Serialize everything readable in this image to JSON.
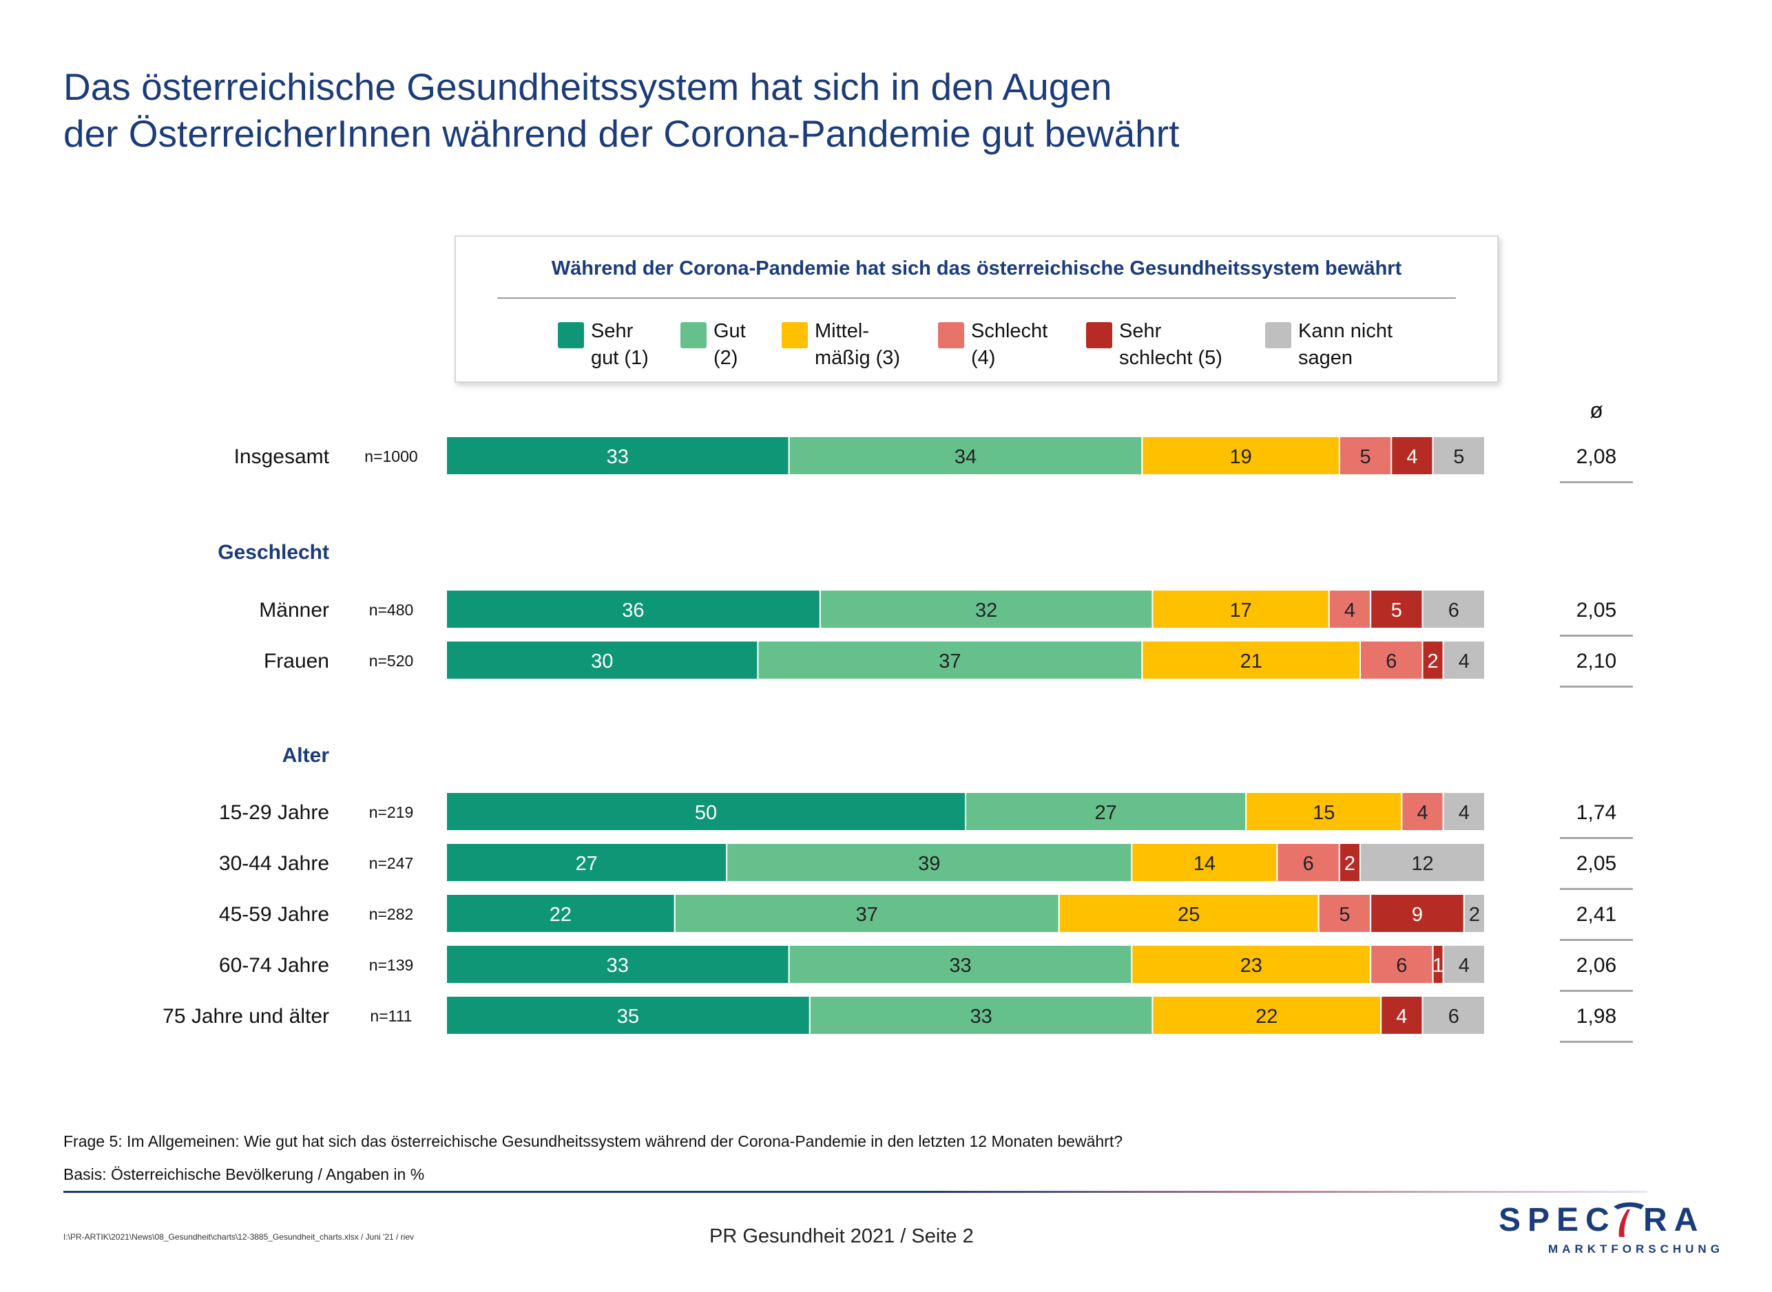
{
  "title_line1": "Das österreichische Gesundheitssystem hat sich in den Augen",
  "title_line2": "der ÖsterreicherInnen während der Corona-Pandemie gut bewährt",
  "chart_data": {
    "type": "bar",
    "orientation": "horizontal-stacked-100",
    "title": "Während der Corona-Pandemie hat sich das österreichische Gesundheitssystem bewährt",
    "unit": "%",
    "legend_placement": "top",
    "series": [
      {
        "name": "Sehr\ngut (1)",
        "color": "#0e9677"
      },
      {
        "name": "Gut\n(2)",
        "color": "#66c08c"
      },
      {
        "name": "Mittel-\nmäßig (3)",
        "color": "#ffc000"
      },
      {
        "name": "Schlecht\n(4)",
        "color": "#e8736b"
      },
      {
        "name": "Sehr\nschlecht (5)",
        "color": "#b62b24"
      },
      {
        "name": "Kann nicht\nsagen",
        "color": "#bfbfbf"
      }
    ],
    "mean_header": "ø",
    "groups": [
      {
        "heading": "",
        "rows": [
          {
            "label": "Insgesamt",
            "n": "n=1000",
            "values": [
              33,
              34,
              19,
              5,
              4,
              5
            ],
            "mean": "2,08"
          }
        ]
      },
      {
        "heading": "Geschlecht",
        "rows": [
          {
            "label": "Männer",
            "n": "n=480",
            "values": [
              36,
              32,
              17,
              4,
              5,
              6
            ],
            "mean": "2,05"
          },
          {
            "label": "Frauen",
            "n": "n=520",
            "values": [
              30,
              37,
              21,
              6,
              2,
              4
            ],
            "mean": "2,10"
          }
        ]
      },
      {
        "heading": "Alter",
        "rows": [
          {
            "label": "15-29 Jahre",
            "n": "n=219",
            "values": [
              50,
              27,
              15,
              4,
              0,
              4
            ],
            "mean": "1,74"
          },
          {
            "label": "30-44 Jahre",
            "n": "n=247",
            "values": [
              27,
              39,
              14,
              6,
              2,
              12
            ],
            "mean": "2,05"
          },
          {
            "label": "45-59 Jahre",
            "n": "n=282",
            "values": [
              22,
              37,
              25,
              5,
              9,
              2
            ],
            "mean": "2,41"
          },
          {
            "label": "60-74 Jahre",
            "n": "n=139",
            "values": [
              33,
              33,
              23,
              6,
              1,
              4
            ],
            "mean": "2,06"
          },
          {
            "label": "75 Jahre und älter",
            "n": "n=111",
            "values": [
              35,
              33,
              22,
              0,
              4,
              6
            ],
            "mean": "1,98"
          }
        ]
      }
    ]
  },
  "footnote_question": "Frage 5: Im Allgemeinen: Wie gut hat sich das österreichische Gesundheitssystem während der Corona-Pandemie in den letzten 12 Monaten bewährt?",
  "footnote_basis": "Basis: Österreichische Bevölkerung / Angaben in %",
  "file_path": "I:\\PR-ARTIK\\2021\\News\\08_Gesundheit\\charts\\12-3885_Gesundheit_charts.xlsx  / Juni '21 / riev",
  "page_footer": "PR Gesundheit 2021  /  Seite  2",
  "logo": {
    "wordmark": "SPECTRA",
    "subtitle": "MARKTFORSCHUNG"
  }
}
